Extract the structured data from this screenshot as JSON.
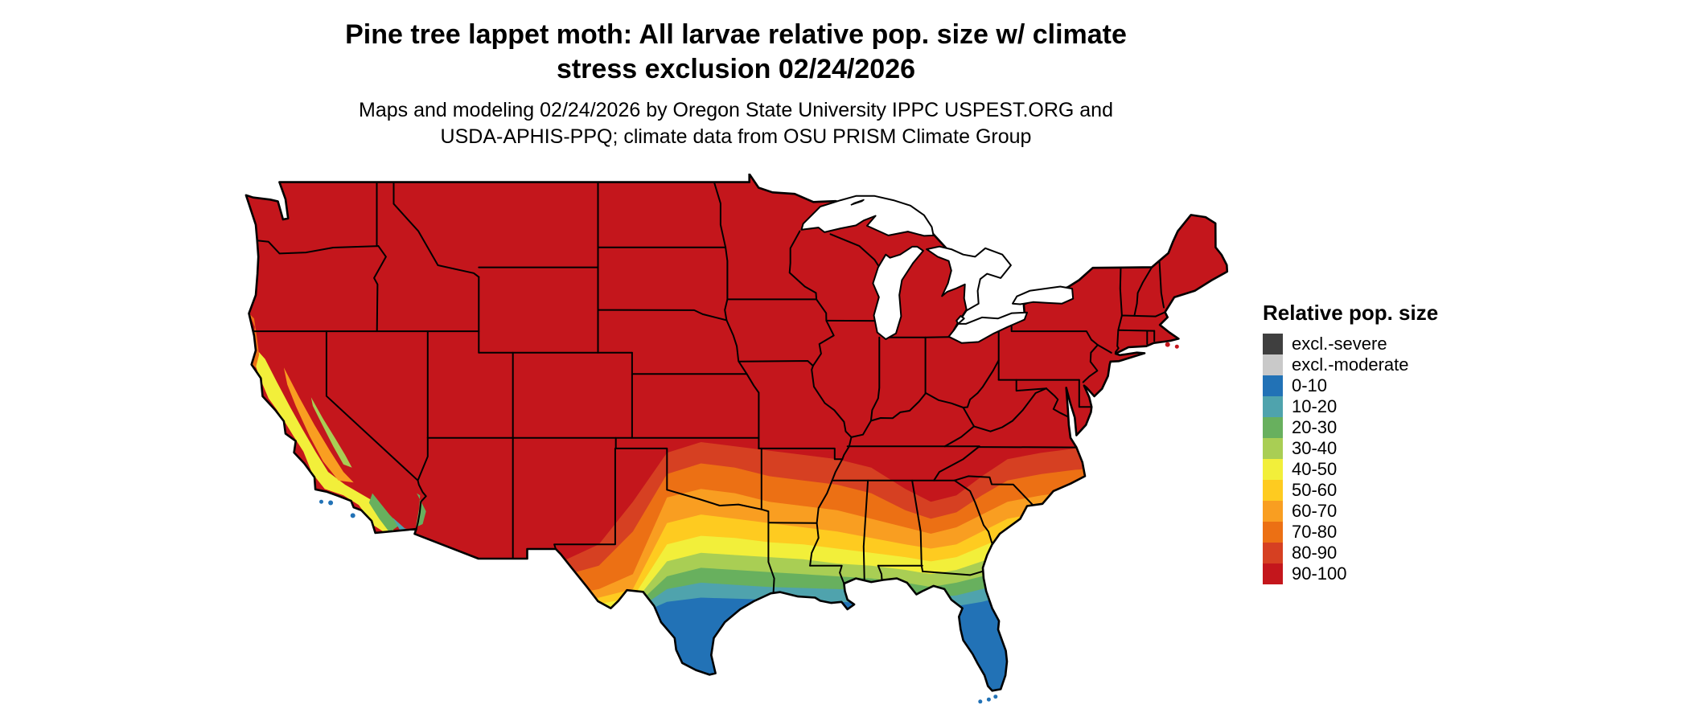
{
  "title": {
    "line1": "Pine tree lappet moth: All larvae relative pop. size w/ climate",
    "line2": "stress exclusion 02/24/2026"
  },
  "subtitle": {
    "line1": "Maps and modeling 02/24/2026 by Oregon State University IPPC USPEST.ORG and",
    "line2": "USDA-APHIS-PPQ; climate data from OSU PRISM Climate Group"
  },
  "legend": {
    "title": "Relative pop. size",
    "items": [
      {
        "label": "excl.-severe",
        "color": "#3F3F3F"
      },
      {
        "label": "excl.-moderate",
        "color": "#C9C9C9"
      },
      {
        "label": "0-10",
        "color": "#2272B6"
      },
      {
        "label": "10-20",
        "color": "#4FA3AD"
      },
      {
        "label": "20-30",
        "color": "#68B05E"
      },
      {
        "label": "30-40",
        "color": "#A9CE54"
      },
      {
        "label": "40-50",
        "color": "#F2EF3A"
      },
      {
        "label": "50-60",
        "color": "#FECB20"
      },
      {
        "label": "60-70",
        "color": "#F99E21"
      },
      {
        "label": "70-80",
        "color": "#EC7014"
      },
      {
        "label": "80-90",
        "color": "#D64022"
      },
      {
        "label": "90-100",
        "color": "#C4161C"
      }
    ]
  },
  "map": {
    "region": "Contiguous United States",
    "majority_class": "90-100",
    "background_color": "#FFFFFF",
    "boundary_color": "#000000",
    "water_color": "#FFFFFF"
  }
}
